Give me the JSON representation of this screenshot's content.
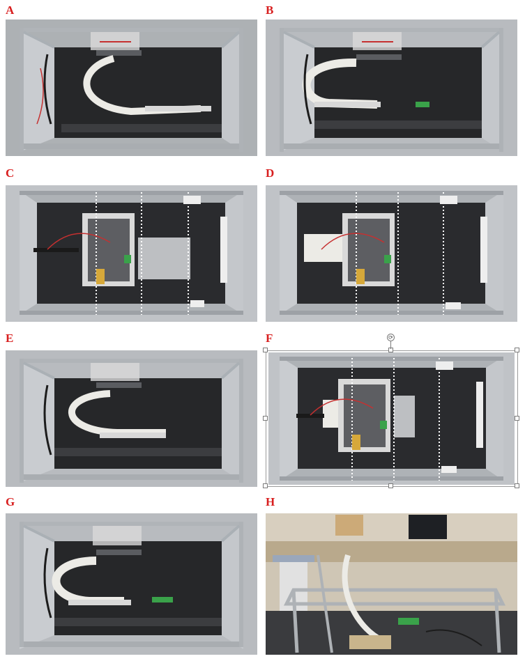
{
  "panels": [
    {
      "id": "A",
      "label": "A",
      "view": "front"
    },
    {
      "id": "B",
      "label": "B",
      "view": "front"
    },
    {
      "id": "C",
      "label": "C",
      "view": "top"
    },
    {
      "id": "D",
      "label": "D",
      "view": "top"
    },
    {
      "id": "E",
      "label": "E",
      "view": "front"
    },
    {
      "id": "F",
      "label": "F",
      "view": "top"
    },
    {
      "id": "G",
      "label": "G",
      "view": "front"
    },
    {
      "id": "H",
      "label": "H",
      "view": "angled"
    }
  ],
  "selection": {
    "selected_panel": "F",
    "rotate_glyph": "⟳"
  },
  "colors": {
    "label": "#d81f1f",
    "frame": "#b9bdc2",
    "interior": "#2a2b2e",
    "foil": "#c9ccd0",
    "strip": "#ecebe6"
  }
}
